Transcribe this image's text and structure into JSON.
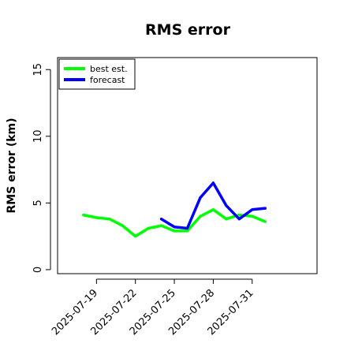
{
  "chart_data": {
    "type": "line",
    "title": "RMS error",
    "xlabel": "",
    "ylabel": "RMS error (km)",
    "x_ticks": [
      "2025-07-19",
      "2025-07-22",
      "2025-07-25",
      "2025-07-28",
      "2025-07-31"
    ],
    "y_ticks": [
      "0",
      "5",
      "10",
      "15"
    ],
    "xlim": [
      "2025-07-16",
      "2025-08-05"
    ],
    "ylim": [
      -0.3,
      15.9
    ],
    "grid": false,
    "legend_position": "top-left",
    "series": [
      {
        "name": "best est.",
        "color": "#00ff00",
        "x": [
          "2025-07-18",
          "2025-07-19",
          "2025-07-20",
          "2025-07-21",
          "2025-07-22",
          "2025-07-23",
          "2025-07-24",
          "2025-07-25",
          "2025-07-26",
          "2025-07-27",
          "2025-07-28",
          "2025-07-29",
          "2025-07-30",
          "2025-07-31",
          "2025-08-01"
        ],
        "values": [
          4.1,
          3.9,
          3.8,
          3.3,
          2.5,
          3.1,
          3.3,
          2.9,
          2.9,
          4.0,
          4.5,
          3.8,
          4.1,
          4.0,
          3.6
        ]
      },
      {
        "name": "forecast",
        "color": "#0000ff",
        "x": [
          "2025-07-24",
          "2025-07-25",
          "2025-07-26",
          "2025-07-27",
          "2025-07-28",
          "2025-07-29",
          "2025-07-30",
          "2025-07-31",
          "2025-08-01"
        ],
        "values": [
          3.8,
          3.2,
          3.1,
          5.4,
          6.5,
          4.8,
          3.8,
          4.5,
          4.6
        ]
      }
    ]
  }
}
